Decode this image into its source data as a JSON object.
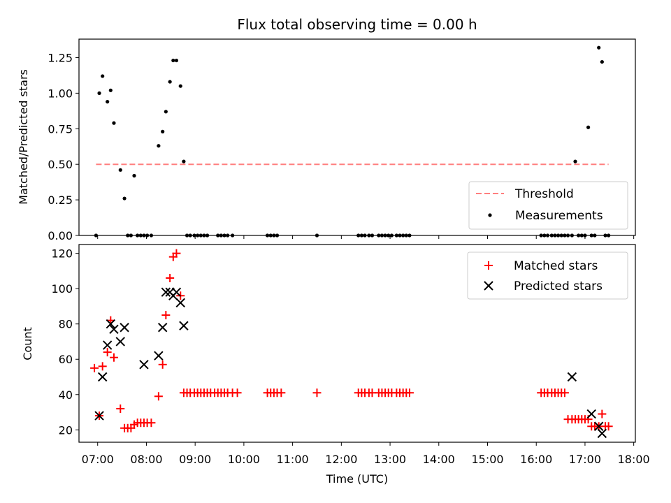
{
  "chart_data": [
    {
      "type": "scatter",
      "title": "Flux total observing time = 0.00 h",
      "xlabel": "",
      "ylabel": "Matched/Predicted stars",
      "xlim": [
        "06:37",
        "18:02"
      ],
      "ylim": [
        0,
        1.38
      ],
      "yticks": [
        "0.00",
        "0.25",
        "0.50",
        "0.75",
        "1.00",
        "1.25"
      ],
      "ytick_values": [
        0,
        0.25,
        0.5,
        0.75,
        1.0,
        1.25
      ],
      "legend": {
        "position": "lower right"
      },
      "threshold": {
        "name": "Threshold",
        "value": 0.5,
        "x_start": "06:58",
        "x_end": "17:29",
        "color": "#ff7f7f"
      },
      "series": [
        {
          "name": "Measurements",
          "color": "#000000",
          "x": [
            "06:58",
            "07:02",
            "07:06",
            "07:12",
            "07:16",
            "07:20",
            "07:28",
            "07:33",
            "07:37",
            "07:41",
            "07:45",
            "07:49",
            "07:53",
            "07:57",
            "08:01",
            "08:06",
            "08:15",
            "08:20",
            "08:24",
            "08:29",
            "08:33",
            "08:37",
            "08:42",
            "08:46",
            "08:50",
            "08:54",
            "08:59",
            "09:03",
            "09:07",
            "09:11",
            "09:15",
            "09:28",
            "09:32",
            "09:36",
            "09:40",
            "09:46",
            "10:29",
            "10:33",
            "10:37",
            "10:41",
            "11:30",
            "12:21",
            "12:25",
            "12:29",
            "12:34",
            "12:38",
            "12:46",
            "12:50",
            "12:54",
            "12:58",
            "13:02",
            "13:08",
            "13:12",
            "13:16",
            "13:20",
            "13:24",
            "16:06",
            "16:10",
            "16:14",
            "16:19",
            "16:23",
            "16:27",
            "16:31",
            "16:35",
            "16:39",
            "16:44",
            "16:48",
            "16:52",
            "16:56",
            "17:00",
            "17:04",
            "17:08",
            "17:12",
            "17:17",
            "17:21",
            "17:25",
            "17:29"
          ],
          "y": [
            0.0,
            1.0,
            1.12,
            0.94,
            1.02,
            0.79,
            0.46,
            0.26,
            0.0,
            0.0,
            0.42,
            0.0,
            0.0,
            0.0,
            0.0,
            0.0,
            0.63,
            0.73,
            0.87,
            1.08,
            1.23,
            1.23,
            1.05,
            0.52,
            0.0,
            0.0,
            0.0,
            0.0,
            0.0,
            0.0,
            0.0,
            0.0,
            0.0,
            0.0,
            0.0,
            0.0,
            0.0,
            0.0,
            0.0,
            0.0,
            0.0,
            0.0,
            0.0,
            0.0,
            0.0,
            0.0,
            0.0,
            0.0,
            0.0,
            0.0,
            0.0,
            0.0,
            0.0,
            0.0,
            0.0,
            0.0,
            0.0,
            0.0,
            0.0,
            0.0,
            0.0,
            0.0,
            0.0,
            0.0,
            0.0,
            0.0,
            0.52,
            0.0,
            0.0,
            0.0,
            0.76,
            0.0,
            0.0,
            1.32,
            1.22,
            0.0,
            0.0
          ]
        }
      ]
    },
    {
      "type": "scatter",
      "title": "",
      "xlabel": "Time (UTC)",
      "ylabel": "Count",
      "xlim": [
        "06:37",
        "18:02"
      ],
      "ylim": [
        13,
        125
      ],
      "yticks": [
        "20",
        "40",
        "60",
        "80",
        "100",
        "120"
      ],
      "ytick_values": [
        20,
        40,
        60,
        80,
        100,
        120
      ],
      "xticks": [
        "07:00",
        "08:00",
        "09:00",
        "10:00",
        "11:00",
        "12:00",
        "13:00",
        "14:00",
        "15:00",
        "16:00",
        "17:00",
        "18:00"
      ],
      "legend": {
        "position": "upper right"
      },
      "series": [
        {
          "name": "Matched stars",
          "marker": "+",
          "color": "#ff0000",
          "x": [
            "06:56",
            "07:02",
            "07:06",
            "07:12",
            "07:16",
            "07:20",
            "07:28",
            "07:33",
            "07:37",
            "07:41",
            "07:45",
            "07:49",
            "07:53",
            "07:57",
            "08:01",
            "08:06",
            "08:15",
            "08:20",
            "08:24",
            "08:29",
            "08:33",
            "08:37",
            "08:42",
            "08:46",
            "08:50",
            "08:54",
            "08:59",
            "09:03",
            "09:07",
            "09:11",
            "09:15",
            "09:19",
            "09:24",
            "09:28",
            "09:32",
            "09:36",
            "09:40",
            "09:46",
            "09:52",
            "10:29",
            "10:33",
            "10:37",
            "10:41",
            "10:46",
            "11:30",
            "12:21",
            "12:25",
            "12:29",
            "12:34",
            "12:38",
            "12:46",
            "12:50",
            "12:54",
            "12:58",
            "13:02",
            "13:08",
            "13:12",
            "13:16",
            "13:20",
            "13:24",
            "16:06",
            "16:10",
            "16:14",
            "16:19",
            "16:23",
            "16:27",
            "16:31",
            "16:35",
            "16:39",
            "16:44",
            "16:48",
            "16:52",
            "16:56",
            "17:00",
            "17:04",
            "17:08",
            "17:12",
            "17:17",
            "17:21",
            "17:25",
            "17:29"
          ],
          "y": [
            55,
            28,
            56,
            64,
            82,
            61,
            32,
            21,
            21,
            21,
            23,
            24,
            24,
            24,
            24,
            24,
            39,
            57,
            85,
            106,
            118,
            120,
            96,
            41,
            41,
            41,
            41,
            41,
            41,
            41,
            41,
            41,
            41,
            41,
            41,
            41,
            41,
            41,
            41,
            41,
            41,
            41,
            41,
            41,
            41,
            41,
            41,
            41,
            41,
            41,
            41,
            41,
            41,
            41,
            41,
            41,
            41,
            41,
            41,
            41,
            41,
            41,
            41,
            41,
            41,
            41,
            41,
            41,
            26,
            26,
            26,
            26,
            26,
            26,
            26,
            22,
            22,
            22,
            29,
            22,
            22
          ]
        },
        {
          "name": "Predicted stars",
          "marker": "x",
          "color": "#000000",
          "x": [
            "07:02",
            "07:06",
            "07:12",
            "07:16",
            "07:20",
            "07:28",
            "07:33",
            "07:57",
            "08:15",
            "08:20",
            "08:24",
            "08:29",
            "08:33",
            "08:37",
            "08:42",
            "08:46",
            "16:44",
            "17:08",
            "17:17",
            "17:21"
          ],
          "y": [
            28,
            50,
            68,
            80,
            77,
            70,
            78,
            57,
            62,
            78,
            98,
            98,
            96,
            98,
            92,
            79,
            50,
            29,
            22,
            18
          ]
        }
      ]
    }
  ]
}
